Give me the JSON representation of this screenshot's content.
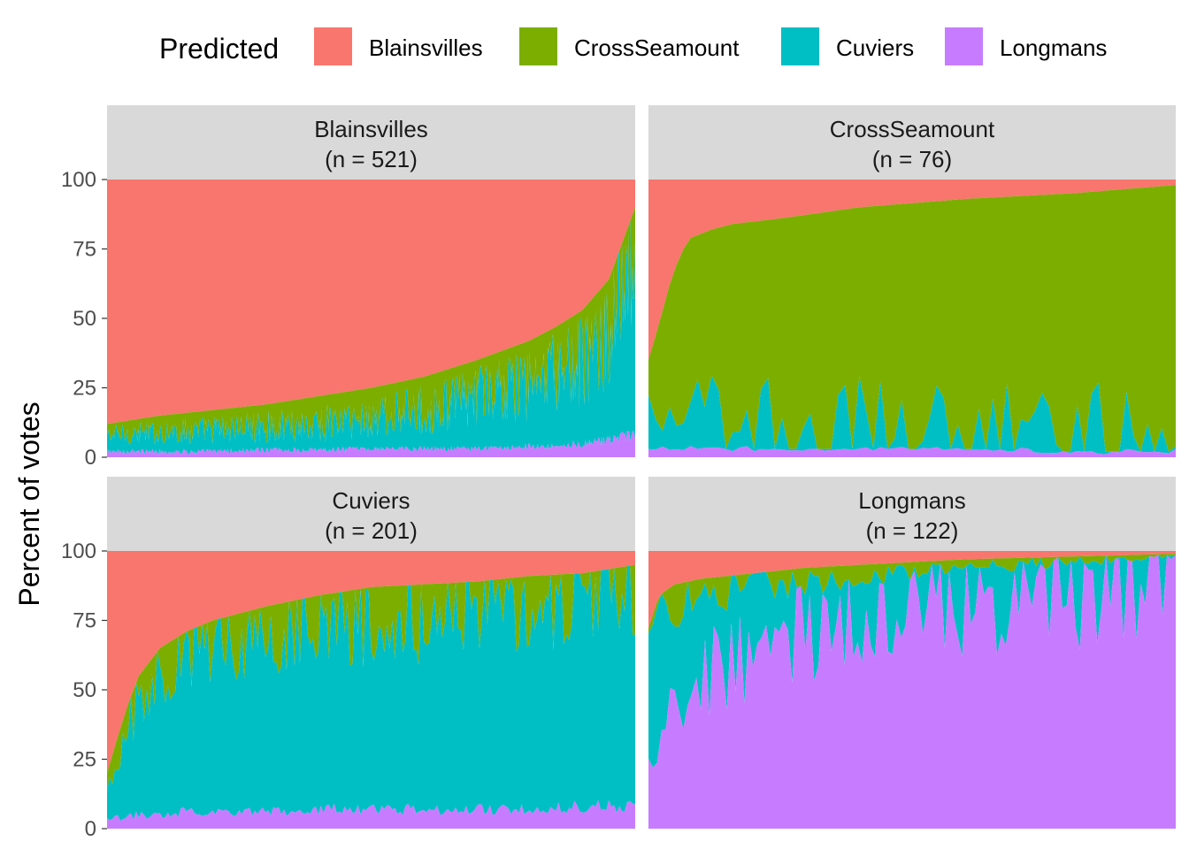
{
  "chart_data": {
    "type": "area",
    "stacked": true,
    "ylabel": "Percent of votes",
    "xlabel": "",
    "ylim": [
      0,
      100
    ],
    "yticks": [
      0,
      25,
      50,
      75,
      100
    ],
    "legend": {
      "title": "Predicted",
      "position": "top",
      "entries": [
        {
          "name": "Blainsvilles",
          "color": "#F8766D"
        },
        {
          "name": "CrossSeamount",
          "color": "#7CAE00"
        },
        {
          "name": "Cuviers",
          "color": "#00BFC4"
        },
        {
          "name": "Longmans",
          "color": "#C77CFF"
        }
      ]
    },
    "stack_order_bottom_to_top": [
      "Longmans",
      "Cuviers",
      "CrossSeamount",
      "Blainsvilles"
    ],
    "panels": [
      {
        "title": "Blainsvilles",
        "n_label": "(n = 521)",
        "n": 521,
        "profile": {
          "x": [
            0,
            0.1,
            0.2,
            0.3,
            0.4,
            0.5,
            0.6,
            0.7,
            0.8,
            0.85,
            0.9,
            0.95,
            1.0
          ],
          "top_cumulative": [
            12,
            15,
            17,
            19,
            22,
            25,
            29,
            35,
            42,
            47,
            53,
            64,
            90
          ],
          "cuviers_top": [
            8,
            9,
            10,
            11,
            12,
            14,
            17,
            22,
            26,
            30,
            34,
            42,
            76
          ],
          "longmans_top": [
            2,
            2,
            2,
            2.5,
            2.5,
            3,
            3,
            3,
            4,
            4,
            5,
            6,
            8
          ]
        }
      },
      {
        "title": "CrossSeamount",
        "n_label": "(n = 76)",
        "n": 76,
        "profile": {
          "x": [
            0,
            0.02,
            0.04,
            0.06,
            0.08,
            0.12,
            0.16,
            0.25,
            0.4,
            0.6,
            0.8,
            1.0
          ],
          "top_cumulative": [
            35,
            48,
            62,
            73,
            79,
            82,
            84,
            86,
            90,
            93,
            95,
            98
          ],
          "cuviers_top": [
            20,
            18,
            16,
            14,
            13,
            12,
            11,
            10,
            9,
            8,
            7,
            6
          ],
          "longmans_top": [
            2,
            3,
            3,
            3,
            3,
            3,
            3,
            3,
            3,
            3,
            2,
            2
          ]
        }
      },
      {
        "title": "Cuviers",
        "n_label": "(n = 201)",
        "n": 201,
        "profile": {
          "x": [
            0,
            0.02,
            0.04,
            0.06,
            0.1,
            0.15,
            0.2,
            0.3,
            0.4,
            0.5,
            0.6,
            0.7,
            0.8,
            0.9,
            1.0
          ],
          "top_cumulative": [
            20,
            33,
            45,
            55,
            65,
            71,
            75,
            80,
            84,
            87,
            88,
            89,
            91,
            92,
            95
          ],
          "cuviers_top": [
            12,
            20,
            35,
            48,
            58,
            64,
            68,
            72,
            75,
            76,
            78,
            80,
            82,
            84,
            87
          ],
          "longmans_top": [
            3,
            4,
            4,
            5,
            5,
            6,
            6,
            6,
            7,
            7,
            7,
            7,
            7,
            8,
            8
          ]
        }
      },
      {
        "title": "Longmans",
        "n_label": "(n = 122)",
        "n": 122,
        "profile": {
          "x": [
            0,
            0.02,
            0.05,
            0.1,
            0.2,
            0.3,
            0.4,
            0.5,
            0.6,
            0.7,
            0.8,
            0.9,
            1.0
          ],
          "top_cumulative": [
            72,
            84,
            88,
            90,
            92,
            94,
            95,
            96,
            97,
            97.5,
            98,
            98.5,
            99
          ],
          "cuviers_top": [
            65,
            74,
            80,
            84,
            87,
            89,
            91,
            92,
            94,
            95,
            96,
            97,
            98
          ],
          "longmans_top": [
            20,
            35,
            48,
            55,
            62,
            72,
            78,
            82,
            85,
            87,
            89,
            92,
            95
          ]
        }
      }
    ]
  }
}
